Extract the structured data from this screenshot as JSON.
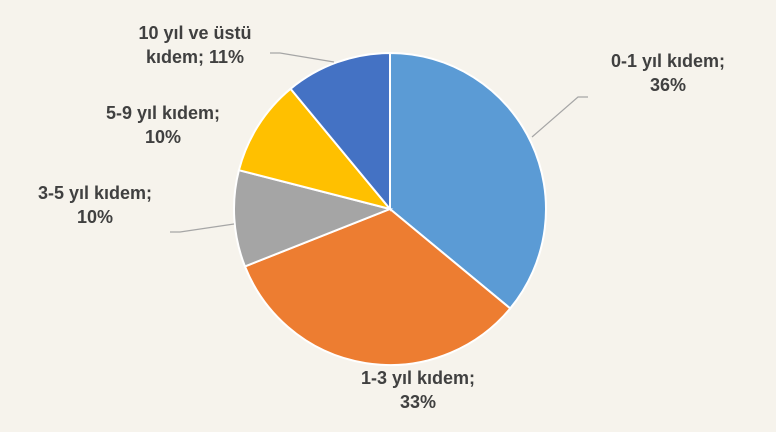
{
  "chart_data": {
    "type": "pie",
    "categories": [
      "0-1 yıl kıdem;",
      "1-3 yıl kıdem;",
      "3-5 yıl kıdem;",
      "5-9 yıl kıdem;",
      "10 yıl ve üstü kıdem;"
    ],
    "values": [
      36,
      33,
      10,
      10,
      11
    ],
    "value_labels": [
      "36%",
      "33%",
      "10%",
      "10%",
      "11%"
    ],
    "colors": [
      "#5b9bd5",
      "#ed7d31",
      "#a5a5a5",
      "#ffc000",
      "#4472c4"
    ]
  }
}
